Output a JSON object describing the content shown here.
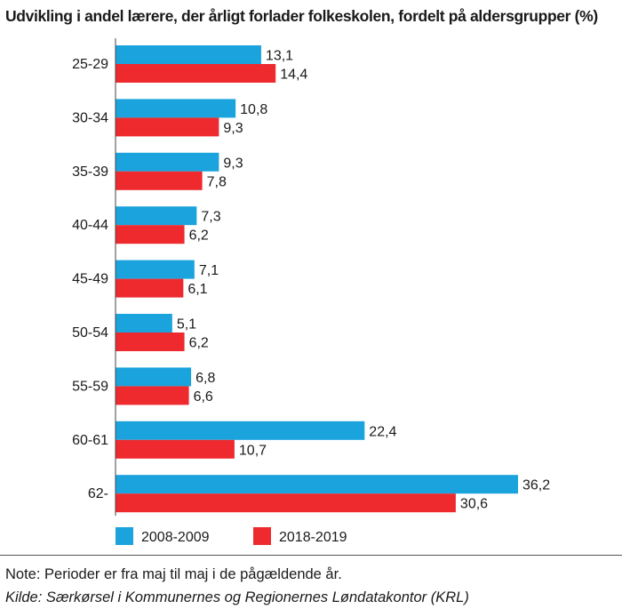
{
  "chart_data": {
    "type": "bar",
    "orientation": "horizontal",
    "title": "Udvikling i andel lærere, der årligt forlader folkeskolen, fordelt på aldersgrupper (%)",
    "categories": [
      "25-29",
      "30-34",
      "35-39",
      "40-44",
      "45-49",
      "50-54",
      "55-59",
      "60-61",
      "62-"
    ],
    "series": [
      {
        "name": "2008-2009",
        "color": "#1aa3dd",
        "values": [
          13.1,
          10.8,
          9.3,
          7.3,
          7.1,
          5.1,
          6.8,
          22.4,
          36.2
        ],
        "labels": [
          "13,1",
          "10,8",
          "9,3",
          "7,3",
          "7,1",
          "5,1",
          "6,8",
          "22,4",
          "36,2"
        ]
      },
      {
        "name": "2018-2019",
        "color": "#ee2a2f",
        "values": [
          14.4,
          9.3,
          7.8,
          6.2,
          6.1,
          6.2,
          6.6,
          10.7,
          30.6
        ],
        "labels": [
          "14,4",
          "9,3",
          "7,8",
          "6,2",
          "6,1",
          "6,2",
          "6,6",
          "10,7",
          "30,6"
        ]
      }
    ],
    "xlim": [
      0,
      36.2
    ],
    "grid": false,
    "legend_position": "bottom-left"
  },
  "footer": {
    "note": "Note: Perioder er fra maj til maj i de pågældende år.",
    "source": "Kilde: Særkørsel i Kommunernes og Regionernes Løndatakontor (KRL)"
  }
}
